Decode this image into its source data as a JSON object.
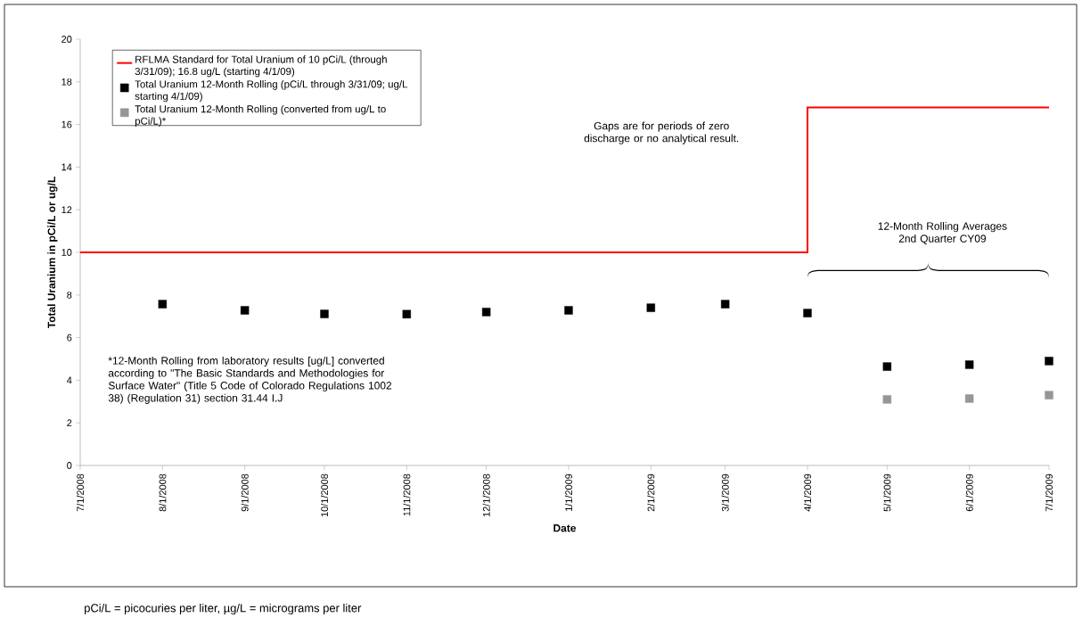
{
  "chart_data": {
    "type": "scatter",
    "xlabel": "Date",
    "ylabel": "Total Uranium in pCi/L or ug/L",
    "xlim": [
      "2008-07-01",
      "2009-07-01"
    ],
    "ylim": [
      0,
      20
    ],
    "xticks": [
      {
        "value": "2008-07-01",
        "label": "7/1/2008"
      },
      {
        "value": "2008-08-01",
        "label": "8/1/2008"
      },
      {
        "value": "2008-09-01",
        "label": "9/1/2008"
      },
      {
        "value": "2008-10-01",
        "label": "10/1/2008"
      },
      {
        "value": "2008-11-01",
        "label": "11/1/2008"
      },
      {
        "value": "2008-12-01",
        "label": "12/1/2008"
      },
      {
        "value": "2009-01-01",
        "label": "1/1/2009"
      },
      {
        "value": "2009-02-01",
        "label": "2/1/2009"
      },
      {
        "value": "2009-03-01",
        "label": "3/1/2009"
      },
      {
        "value": "2009-04-01",
        "label": "4/1/2009"
      },
      {
        "value": "2009-05-01",
        "label": "5/1/2009"
      },
      {
        "value": "2009-06-01",
        "label": "6/1/2009"
      },
      {
        "value": "2009-07-01",
        "label": "7/1/2009"
      }
    ],
    "yticks": [
      0,
      2,
      4,
      6,
      8,
      10,
      12,
      14,
      16,
      18,
      20
    ],
    "grid": false,
    "legend": "top left",
    "marker": "square",
    "series": [
      {
        "name": "RFLMA Standard for Total Uranium of 10 pCi/L (through 3/31/09); 16.8 ug/L (starting 4/1/09)",
        "type": "step",
        "marker": "none",
        "color": "#ff0000",
        "x": [
          "2008-07-01",
          "2009-04-01",
          "2009-07-01"
        ],
        "values": [
          10,
          16.8,
          16.8
        ]
      },
      {
        "name": "Total Uranium 12-Month Rolling (pCi/L through 3/31/09; ug/L starting 4/1/09)",
        "color": "#000000",
        "x": [
          "2008-08-01",
          "2008-09-01",
          "2008-10-01",
          "2008-11-01",
          "2008-12-01",
          "2009-01-01",
          "2009-02-01",
          "2009-03-01",
          "2009-04-01",
          "2009-05-01",
          "2009-06-01",
          "2009-07-01"
        ],
        "values": [
          7.57,
          7.28,
          7.11,
          7.1,
          7.2,
          7.28,
          7.4,
          7.57,
          7.15,
          4.64,
          4.73,
          4.9
        ]
      },
      {
        "name": "Total Uranium 12-Month Rolling (converted from ug/L to pCi/L)*",
        "color": "#969696",
        "x": [
          "2009-05-01",
          "2009-06-01",
          "2009-07-01"
        ],
        "values": [
          3.1,
          3.14,
          3.3
        ]
      }
    ],
    "annotations": [
      "Gaps are for periods of zero discharge or no analytical result.",
      "12-Month Rolling Averages 2nd Quarter CY09",
      "*12-Month Rolling from laboratory results [ug/L] converted according to \"The Basic Standards and Methodologies for Surface Water\" (Title 5 Code of Colorado Regulations 1002 38) (Regulation 31) section 31.44 I.J",
      "pCi/L = picocuries per liter, µg/L = micrograms per liter"
    ]
  }
}
